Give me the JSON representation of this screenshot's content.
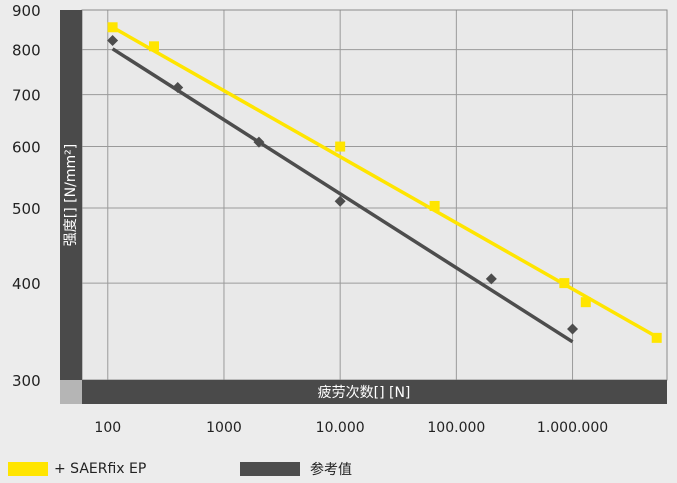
{
  "chart_data": {
    "type": "scatter",
    "x_scale": "log",
    "y_scale": "log",
    "xlabel": "疲劳次数[] [N]",
    "ylabel": "强度[] [N/mm²]",
    "x_ticks": [
      100,
      1000,
      10000,
      100000,
      1000000
    ],
    "x_tick_labels": [
      "100",
      "1000",
      "10.000",
      "100.000",
      "1.000.000"
    ],
    "y_ticks": [
      300,
      400,
      500,
      600,
      700,
      800,
      900
    ],
    "y_tick_labels": [
      "300",
      "400",
      "500",
      "600",
      "700",
      "800",
      "900"
    ],
    "xlim": [
      60,
      6500000
    ],
    "ylim": [
      300,
      900
    ],
    "grid": true,
    "legend_position": "bottom-left",
    "series": [
      {
        "name": "+ SAERfix EP",
        "color": "#ffe500",
        "marker": "square",
        "points": [
          [
            110,
            855
          ],
          [
            250,
            808
          ],
          [
            10000,
            600
          ],
          [
            65000,
            503
          ],
          [
            850000,
            400
          ],
          [
            1300000,
            378
          ],
          [
            5300000,
            340
          ]
        ],
        "trend": [
          [
            110,
            855
          ],
          [
            5300000,
            341
          ]
        ]
      },
      {
        "name": "参考值",
        "color": "#4d4d4d",
        "marker": "diamond",
        "points": [
          [
            110,
            822
          ],
          [
            400,
            715
          ],
          [
            2000,
            608
          ],
          [
            10000,
            510
          ],
          [
            200000,
            405
          ],
          [
            1000000,
            349
          ]
        ],
        "trend": [
          [
            110,
            802
          ],
          [
            1000000,
            336
          ]
        ]
      }
    ]
  }
}
